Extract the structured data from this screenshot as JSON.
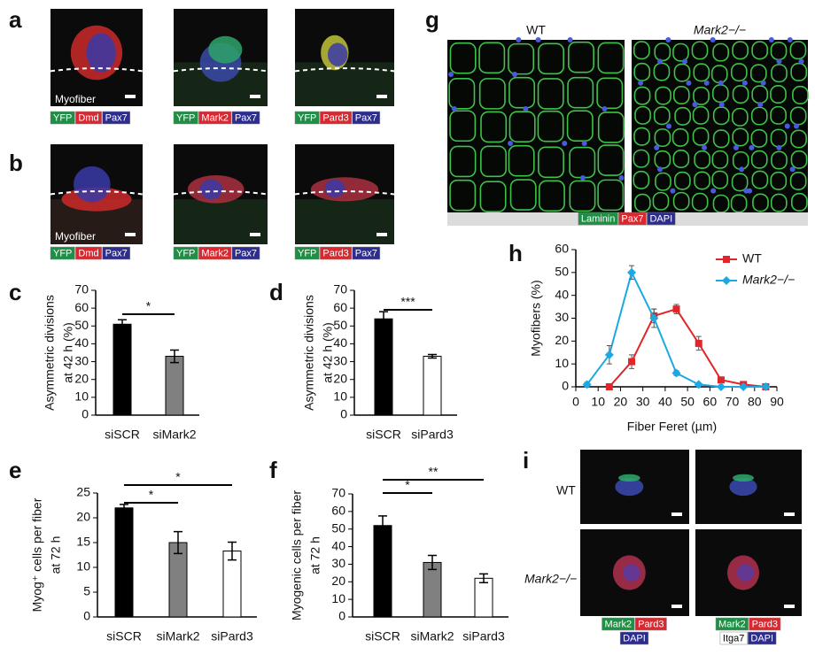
{
  "panel_labels": [
    "a",
    "b",
    "c",
    "d",
    "e",
    "f",
    "g",
    "h",
    "i"
  ],
  "panel_a": {
    "caption": "Myofiber",
    "legends": [
      [
        {
          "text": "YFP",
          "color": "#1f8f45"
        },
        {
          "text": "Dmd",
          "color": "#d9282f"
        },
        {
          "text": "Pax7",
          "color": "#2d2d8f"
        }
      ],
      [
        {
          "text": "YFP",
          "color": "#1f8f45"
        },
        {
          "text": "Mark2",
          "color": "#d9282f"
        },
        {
          "text": "Pax7",
          "color": "#2d2d8f"
        }
      ],
      [
        {
          "text": "YFP",
          "color": "#1f8f45"
        },
        {
          "text": "Pard3",
          "color": "#d9282f"
        },
        {
          "text": "Pax7",
          "color": "#2d2d8f"
        }
      ]
    ]
  },
  "panel_b": {
    "caption": "Myofiber",
    "legends": [
      [
        {
          "text": "YFP",
          "color": "#1f8f45"
        },
        {
          "text": "Dmd",
          "color": "#d9282f"
        },
        {
          "text": "Pax7",
          "color": "#2d2d8f"
        }
      ],
      [
        {
          "text": "YFP",
          "color": "#1f8f45"
        },
        {
          "text": "Mark2",
          "color": "#d9282f"
        },
        {
          "text": "Pax7",
          "color": "#2d2d8f"
        }
      ],
      [
        {
          "text": "YFP",
          "color": "#1f8f45"
        },
        {
          "text": "Pard3",
          "color": "#d9282f"
        },
        {
          "text": "Pax7",
          "color": "#2d2d8f"
        }
      ]
    ]
  },
  "panel_g": {
    "titles": [
      "WT",
      "Mark2−/−"
    ],
    "legend": [
      {
        "text": "Laminin",
        "color": "#1f8f45"
      },
      {
        "text": "Pax7",
        "color": "#d9282f"
      },
      {
        "text": "DAPI",
        "color": "#2d2d8f"
      }
    ]
  },
  "panel_i": {
    "rows": [
      "WT",
      "Mark2−/−"
    ],
    "legends": [
      [
        [
          {
            "text": "Mark2",
            "color": "#1f8f45"
          },
          {
            "text": "Pard3",
            "color": "#d9282f"
          }
        ],
        [
          {
            "text": "DAPI",
            "color": "#2d2d8f"
          }
        ]
      ],
      [
        [
          {
            "text": "Mark2",
            "color": "#1f8f45"
          },
          {
            "text": "Pard3",
            "color": "#d9282f"
          }
        ],
        [
          {
            "text": "Itga7",
            "color": "#ffffff"
          },
          {
            "text": "DAPI",
            "color": "#2d2d8f"
          }
        ]
      ]
    ]
  },
  "chart_data": [
    {
      "type": "bar",
      "ylabel": [
        "Asymmetric divisions",
        "at 42 h (%)"
      ],
      "categories": [
        "siSCR",
        "siMark2"
      ],
      "values": [
        51,
        33
      ],
      "errors": [
        2.5,
        3.5
      ],
      "colors": [
        "#000000",
        "#808080"
      ],
      "ylim": [
        0,
        70
      ],
      "yticks": [
        0,
        10,
        20,
        30,
        40,
        50,
        60,
        70
      ],
      "annotations": [
        "*"
      ]
    },
    {
      "type": "bar",
      "ylabel": [
        "Asymmetric divisions",
        "at 42 h (%)"
      ],
      "categories": [
        "siSCR",
        "siPard3"
      ],
      "values": [
        54,
        33
      ],
      "errors": [
        4,
        1
      ],
      "colors": [
        "#000000",
        "#ffffff"
      ],
      "ylim": [
        0,
        70
      ],
      "yticks": [
        0,
        10,
        20,
        30,
        40,
        50,
        60,
        70
      ],
      "annotations": [
        "***"
      ]
    },
    {
      "type": "bar",
      "ylabel": [
        "Myog⁺ cells per fiber",
        "at 72 h"
      ],
      "categories": [
        "siSCR",
        "siMark2",
        "siPard3"
      ],
      "values": [
        22,
        15,
        13.3
      ],
      "errors": [
        0.7,
        2.2,
        1.8
      ],
      "colors": [
        "#000000",
        "#808080",
        "#ffffff"
      ],
      "ylim": [
        0,
        25
      ],
      "yticks": [
        0,
        5,
        10,
        15,
        20,
        25
      ],
      "annotations": [
        "*",
        "*"
      ]
    },
    {
      "type": "bar",
      "ylabel": [
        "Myogenic cells per fiber",
        "at 72 h"
      ],
      "categories": [
        "siSCR",
        "siMark2",
        "siPard3"
      ],
      "values": [
        52,
        31,
        22
      ],
      "errors": [
        5.5,
        4,
        2.5
      ],
      "colors": [
        "#000000",
        "#808080",
        "#ffffff"
      ],
      "ylim": [
        0,
        70
      ],
      "yticks": [
        0,
        10,
        20,
        30,
        40,
        50,
        60,
        70
      ],
      "annotations": [
        "*",
        "**"
      ]
    },
    {
      "type": "line",
      "xlabel": "Fiber Feret (µm)",
      "ylabel": "Myofibers (%)",
      "x": [
        5,
        15,
        25,
        35,
        45,
        55,
        65,
        75,
        85
      ],
      "series": [
        {
          "name": "WT",
          "color": "#e0252b",
          "marker": "square",
          "values": [
            null,
            0,
            11,
            31,
            34,
            19,
            3,
            1,
            0
          ],
          "errors": [
            null,
            0.5,
            3,
            3,
            2,
            3,
            1,
            0.5,
            0.3
          ]
        },
        {
          "name": "Mark2−/−",
          "color": "#1ba9e1",
          "marker": "diamond",
          "values": [
            1,
            14,
            50,
            30,
            6,
            1,
            0,
            0,
            0
          ],
          "errors": [
            1,
            4,
            3,
            4,
            1,
            0.5,
            0.3,
            0.3,
            0.3
          ]
        }
      ],
      "xlim": [
        0,
        90
      ],
      "xticks": [
        0,
        10,
        20,
        30,
        40,
        50,
        60,
        70,
        80,
        90
      ],
      "ylim": [
        0,
        60
      ],
      "yticks": [
        0,
        10,
        20,
        30,
        40,
        50,
        60
      ]
    }
  ]
}
